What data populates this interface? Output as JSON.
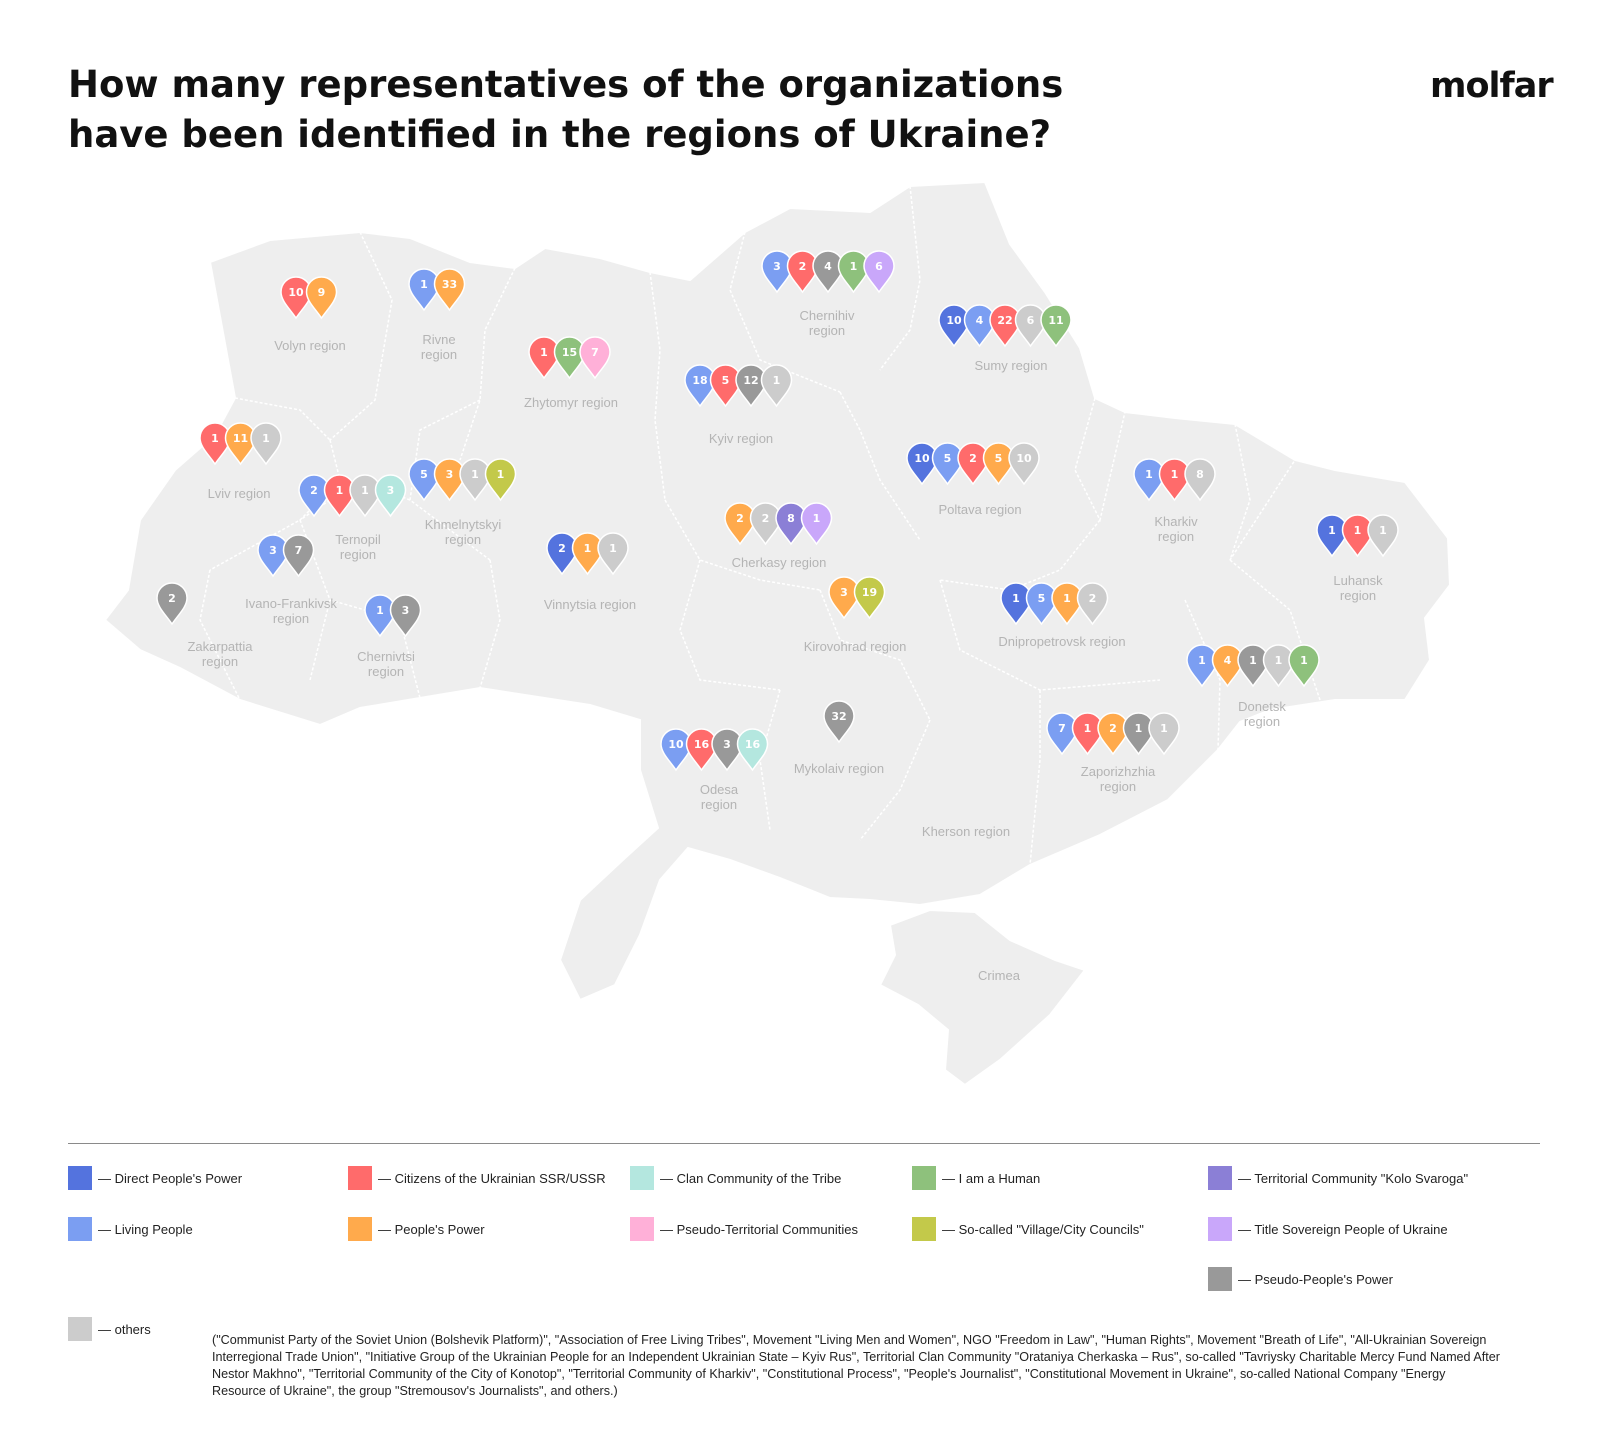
{
  "title_lines": [
    "How many representatives of the organizations",
    "have been identified in the regions of Ukraine?"
  ],
  "logo": "molfar",
  "colors": {
    "direct": "#5473DE",
    "citizens": "#FF6B6B",
    "clan": "#B4E7DF",
    "human": "#8EC17C",
    "kolo": "#8B7FD6",
    "living": "#7B9EF2",
    "peoples": "#FFAA4C",
    "pseudo_terr": "#FFB0D8",
    "councils": "#C3C94A",
    "title_sov": "#C9A7FA",
    "pseudo_peoples": "#999999",
    "others": "#CCCCCC"
  },
  "legend": [
    {
      "key": "direct",
      "label": "— Direct People's Power"
    },
    {
      "key": "citizens",
      "label": "— Citizens of the Ukrainian SSR/USSR"
    },
    {
      "key": "clan",
      "label": "— Clan Community of the Tribe"
    },
    {
      "key": "human",
      "label": "— I am a Human"
    },
    {
      "key": "kolo",
      "label": "— Territorial Community \"Kolo Svaroga\""
    },
    {
      "key": "living",
      "label": "— Living People"
    },
    {
      "key": "peoples",
      "label": "— People's Power"
    },
    {
      "key": "pseudo_terr",
      "label": "— Pseudo-Territorial Communities"
    },
    {
      "key": "councils",
      "label": "— So-called \"Village/City Councils\""
    },
    {
      "key": "title_sov",
      "label": "— Title Sovereign People of Ukraine"
    },
    {
      "key": "pseudo_peoples",
      "label": "— Pseudo-People's Power"
    },
    {
      "key": "others",
      "label": "— others"
    }
  ],
  "others_note": "(\"Communist Party of the Soviet Union (Bolshevik Platform)\", \"Association of Free Living Tribes\", Movement \"Living Men and Women\", NGO \"Freedom in Law\", \"Human Rights\", Movement \"Breath of Life\", \"All-Ukrainian Sovereign Interregional Trade Union\", \"Initiative Group of the Ukrainian People for an Independent Ukrainian State – Kyiv Rus\", Territorial Clan Community \"Orataniya Cherkaska – Rus\", so-called \"Tavriysky Charitable Mercy Fund Named After Nestor Makhno\", \"Territorial Community of the City of Konotop\", \"Territorial Community of Kharkiv\", \"Constitutional Process\", \"People's Journalist\", \"Constitutional Movement in Ukraine\", so-called National Company \"Energy Resource of Ukraine\", the group \"Stremousov's Journalists\", and others.)",
  "regions": [
    {
      "name": [
        "Volyn region"
      ],
      "pins": [
        {
          "org": "citizens",
          "value": 10
        },
        {
          "org": "peoples",
          "value": 9
        }
      ]
    },
    {
      "name": [
        "Rivne",
        "region"
      ],
      "pins": [
        {
          "org": "living",
          "value": 1
        },
        {
          "org": "peoples",
          "value": 33
        }
      ]
    },
    {
      "name": [
        "Zhytomyr region"
      ],
      "pins": [
        {
          "org": "citizens",
          "value": 1
        },
        {
          "org": "human",
          "value": 15
        },
        {
          "org": "pseudo_terr",
          "value": 7
        }
      ]
    },
    {
      "name": [
        "Chernihiv",
        "region"
      ],
      "pins": [
        {
          "org": "living",
          "value": 3
        },
        {
          "org": "citizens",
          "value": 2
        },
        {
          "org": "pseudo_peoples",
          "value": 4
        },
        {
          "org": "human",
          "value": 1
        },
        {
          "org": "title_sov",
          "value": 6
        }
      ]
    },
    {
      "name": [
        "Sumy region"
      ],
      "pins": [
        {
          "org": "direct",
          "value": 10
        },
        {
          "org": "living",
          "value": 4
        },
        {
          "org": "citizens",
          "value": 22
        },
        {
          "org": "others",
          "value": 6
        },
        {
          "org": "human",
          "value": 11
        }
      ]
    },
    {
      "name": [
        "Kyiv region"
      ],
      "pins": [
        {
          "org": "living",
          "value": 18
        },
        {
          "org": "citizens",
          "value": 5
        },
        {
          "org": "pseudo_peoples",
          "value": 12
        },
        {
          "org": "others",
          "value": 1
        }
      ]
    },
    {
      "name": [
        "Lviv region"
      ],
      "pins": [
        {
          "org": "citizens",
          "value": 1
        },
        {
          "org": "peoples",
          "value": 11
        },
        {
          "org": "others",
          "value": 1
        }
      ]
    },
    {
      "name": [
        "Ternopil",
        "region"
      ],
      "pins": [
        {
          "org": "living",
          "value": 2
        },
        {
          "org": "citizens",
          "value": 1
        },
        {
          "org": "others",
          "value": 1
        },
        {
          "org": "clan",
          "value": 3
        }
      ]
    },
    {
      "name": [
        "Khmelnytskyi",
        "region"
      ],
      "pins": [
        {
          "org": "living",
          "value": 5
        },
        {
          "org": "peoples",
          "value": 3
        },
        {
          "org": "others",
          "value": 1
        },
        {
          "org": "councils",
          "value": 1
        }
      ]
    },
    {
      "name": [
        "Poltava region"
      ],
      "pins": [
        {
          "org": "direct",
          "value": 10
        },
        {
          "org": "living",
          "value": 5
        },
        {
          "org": "citizens",
          "value": 2
        },
        {
          "org": "peoples",
          "value": 5
        },
        {
          "org": "others",
          "value": 10
        }
      ]
    },
    {
      "name": [
        "Kharkiv",
        "region"
      ],
      "pins": [
        {
          "org": "living",
          "value": 1
        },
        {
          "org": "citizens",
          "value": 1
        },
        {
          "org": "others",
          "value": 8
        }
      ]
    },
    {
      "name": [
        "Cherkasy region"
      ],
      "pins": [
        {
          "org": "peoples",
          "value": 2
        },
        {
          "org": "others",
          "value": 2
        },
        {
          "org": "kolo",
          "value": 8
        },
        {
          "org": "title_sov",
          "value": 1
        }
      ]
    },
    {
      "name": [
        "Luhansk",
        "region"
      ],
      "pins": [
        {
          "org": "direct",
          "value": 1
        },
        {
          "org": "citizens",
          "value": 1
        },
        {
          "org": "others",
          "value": 1
        }
      ]
    },
    {
      "name": [
        "Vinnytsia region"
      ],
      "pins": [
        {
          "org": "direct",
          "value": 2
        },
        {
          "org": "peoples",
          "value": 1
        },
        {
          "org": "others",
          "value": 1
        }
      ]
    },
    {
      "name": [
        "Ivano-Frankivsk",
        "region"
      ],
      "pins": [
        {
          "org": "living",
          "value": 3
        },
        {
          "org": "pseudo_peoples",
          "value": 7
        }
      ]
    },
    {
      "name": [
        "Zakarpattia",
        "region"
      ],
      "pins": [
        {
          "org": "pseudo_peoples",
          "value": 2
        }
      ]
    },
    {
      "name": [
        "Chernivtsi",
        "region"
      ],
      "pins": [
        {
          "org": "living",
          "value": 1
        },
        {
          "org": "pseudo_peoples",
          "value": 3
        }
      ]
    },
    {
      "name": [
        "Kirovohrad region"
      ],
      "pins": [
        {
          "org": "peoples",
          "value": 3
        },
        {
          "org": "councils",
          "value": 19
        }
      ]
    },
    {
      "name": [
        "Dnipropetrovsk region"
      ],
      "pins": [
        {
          "org": "direct",
          "value": 1
        },
        {
          "org": "living",
          "value": 5
        },
        {
          "org": "peoples",
          "value": 1
        },
        {
          "org": "others",
          "value": 2
        }
      ]
    },
    {
      "name": [
        "Donetsk",
        "region"
      ],
      "pins": [
        {
          "org": "living",
          "value": 1
        },
        {
          "org": "peoples",
          "value": 4
        },
        {
          "org": "pseudo_peoples",
          "value": 1
        },
        {
          "org": "others",
          "value": 1
        },
        {
          "org": "human",
          "value": 1
        }
      ]
    },
    {
      "name": [
        "Odesa",
        "region"
      ],
      "pins": [
        {
          "org": "living",
          "value": 10
        },
        {
          "org": "citizens",
          "value": 16
        },
        {
          "org": "pseudo_peoples",
          "value": 3
        },
        {
          "org": "clan",
          "value": 16
        }
      ]
    },
    {
      "name": [
        "Mykolaiv region"
      ],
      "pins": [
        {
          "org": "pseudo_peoples",
          "value": 32
        }
      ]
    },
    {
      "name": [
        "Zaporizhzhia",
        "region"
      ],
      "pins": [
        {
          "org": "living",
          "value": 7
        },
        {
          "org": "citizens",
          "value": 1
        },
        {
          "org": "peoples",
          "value": 2
        },
        {
          "org": "pseudo_peoples",
          "value": 1
        },
        {
          "org": "others",
          "value": 1
        }
      ]
    },
    {
      "name": [
        "Kherson region"
      ],
      "pins": []
    },
    {
      "name": [
        "Crimea"
      ],
      "pins": []
    }
  ]
}
